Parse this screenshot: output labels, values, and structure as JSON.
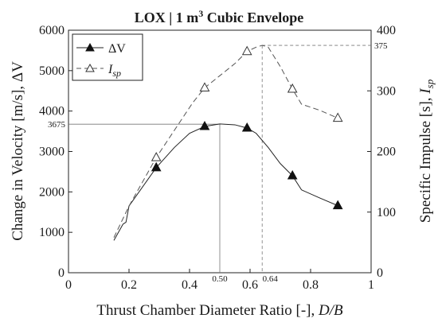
{
  "chart_data": {
    "type": "line",
    "title": {
      "main": "LOX | 1 m",
      "sup": "3",
      "rest": " Cubic Envelope"
    },
    "xlabel": {
      "text": "Thrust Chamber Diameter Ratio [-], ",
      "symbol": "D/B"
    },
    "ylabel_left": "Change in Velocity [m/s], ΔV",
    "ylabel_right": {
      "text": "Specific Impulse [s], ",
      "symbol": "I",
      "sub": "sp"
    },
    "xlim": [
      0,
      1
    ],
    "ylim_left": [
      0,
      6000
    ],
    "ylim_right": [
      0,
      400
    ],
    "x_ticks": [
      "0",
      "0.2",
      "0.4",
      "0.6",
      "0.8",
      "1"
    ],
    "y_ticks_left": [
      "0",
      "1000",
      "2000",
      "3000",
      "4000",
      "5000",
      "6000"
    ],
    "y_ticks_right": [
      "0",
      "100",
      "200",
      "300",
      "400"
    ],
    "grid": false,
    "legend_position": "top-left",
    "series": [
      {
        "name": "ΔV",
        "axis": "left",
        "line_style": "solid",
        "marker": "filled-triangle",
        "line_x": [
          0.15,
          0.18,
          0.19,
          0.2,
          0.29,
          0.35,
          0.4,
          0.45,
          0.5,
          0.55,
          0.59,
          0.62,
          0.66,
          0.7,
          0.74,
          0.77,
          0.83,
          0.89
        ],
        "line_y": [
          800,
          1200,
          1250,
          1650,
          2600,
          3100,
          3450,
          3620,
          3680,
          3660,
          3580,
          3450,
          3100,
          2700,
          2400,
          2050,
          1850,
          1660
        ],
        "markers_x": [
          0.29,
          0.45,
          0.59,
          0.74,
          0.89
        ],
        "markers_y": [
          2600,
          3620,
          3580,
          2400,
          1660
        ]
      },
      {
        "name": "I",
        "name_sub": "sp",
        "axis": "right",
        "line_style": "dashed",
        "marker": "open-triangle",
        "line_x": [
          0.15,
          0.2,
          0.29,
          0.35,
          0.41,
          0.45,
          0.5,
          0.55,
          0.59,
          0.62,
          0.64,
          0.66,
          0.7,
          0.74,
          0.77,
          0.83,
          0.89
        ],
        "line_y": [
          58,
          110,
          190,
          235,
          280,
          305,
          325,
          345,
          365,
          372,
          375,
          372,
          340,
          303,
          278,
          268,
          255
        ],
        "markers_x": [
          0.29,
          0.45,
          0.59,
          0.74,
          0.89
        ],
        "markers_y": [
          190,
          305,
          365,
          303,
          255
        ]
      }
    ],
    "annotations": {
      "x_marks": [
        {
          "x": 0.5,
          "label": "0.50",
          "style": "solid"
        },
        {
          "x": 0.64,
          "label": "0.64",
          "style": "dashed"
        }
      ],
      "y_left_mark": {
        "y": 3675,
        "label": "3675"
      },
      "y_right_mark": {
        "y": 375,
        "label": "375"
      }
    }
  }
}
